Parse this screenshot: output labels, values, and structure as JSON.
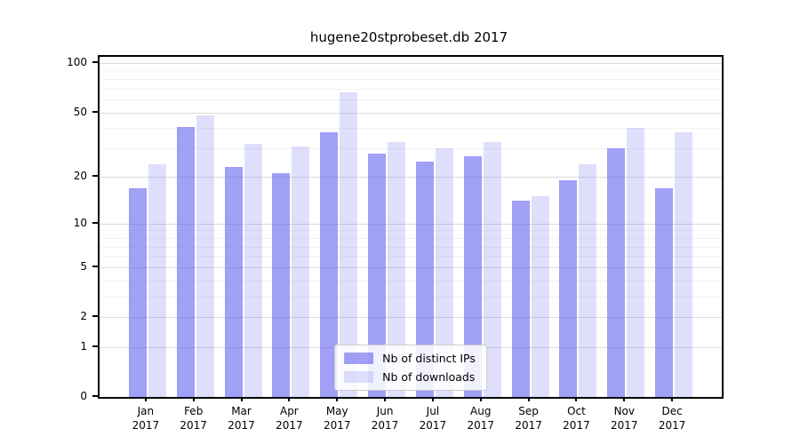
{
  "chart_data": {
    "type": "bar",
    "title": "hugene20stprobeset.db 2017",
    "categories": [
      "Jan",
      "Feb",
      "Mar",
      "Apr",
      "May",
      "Jun",
      "Jul",
      "Aug",
      "Sep",
      "Oct",
      "Nov",
      "Dec"
    ],
    "x_year": "2017",
    "series": [
      {
        "name": "Nb of distinct IPs",
        "color": "rgba(102,102,240,0.62)",
        "values": [
          17,
          41,
          23,
          21,
          38,
          28,
          25,
          27,
          14,
          19,
          30,
          17
        ]
      },
      {
        "name": "Nb of downloads",
        "color": "rgba(102,102,240,0.21)",
        "values": [
          24,
          48,
          32,
          31,
          66,
          33,
          30,
          33,
          15,
          24,
          40,
          38
        ]
      }
    ],
    "xlabel": "",
    "ylabel": "",
    "yscale": "log1p",
    "ylim": [
      0,
      110
    ],
    "ytick_labels": [
      100,
      50,
      20,
      10,
      5,
      2,
      1,
      0
    ],
    "minor_gridlines": [
      3,
      4,
      6,
      7,
      8,
      9,
      30,
      40,
      60,
      70,
      80,
      90
    ],
    "grid": true,
    "legend_position": "lower center"
  },
  "colors": {
    "background": "#ffffff",
    "axis": "#000000",
    "grid_major": "#dcdcdc",
    "grid_minor": "#f2f2f2",
    "legend_border": "#cccccc"
  }
}
